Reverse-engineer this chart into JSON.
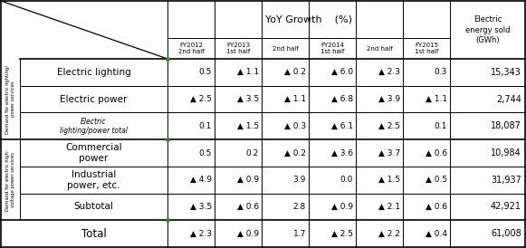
{
  "title_yoy": "YoY Growth    (%)",
  "title_electric": "Electric\nenergy sold\n(GWh)",
  "col_headers": [
    "FY2012\n2nd half",
    "FY2013\n1st half",
    "2nd half",
    "FY2014\n1st half",
    "2nd half",
    "FY2015\n1st half"
  ],
  "rows": [
    {
      "label": "Electric lighting",
      "label_size": 7.5,
      "italic": false,
      "values": [
        "0.5",
        "▲ 1.1",
        "▲ 0.2",
        "▲ 6.0",
        "▲ 2.3",
        "0.3"
      ],
      "kwh": "15,343",
      "group": 1,
      "subtotal": false,
      "total": false
    },
    {
      "label": "Electric power",
      "label_size": 7.5,
      "italic": false,
      "values": [
        "▲ 2.5",
        "▲ 3.5",
        "▲ 1.1",
        "▲ 6.8",
        "▲ 3.9",
        "▲ 1.1"
      ],
      "kwh": "2,744",
      "group": 1,
      "subtotal": false,
      "total": false
    },
    {
      "label": "Electric\nlighting/power total",
      "label_size": 5.5,
      "italic": true,
      "values": [
        "0.1",
        "▲ 1.5",
        "▲ 0.3",
        "▲ 6.1",
        "▲ 2.5",
        "0.1"
      ],
      "kwh": "18,087",
      "group": 1,
      "subtotal": true,
      "total": false
    },
    {
      "label": "Commercial\npower",
      "label_size": 7.5,
      "italic": false,
      "values": [
        "0.5",
        "0.2",
        "▲ 0.2",
        "▲ 3.6",
        "▲ 3.7",
        "▲ 0.6"
      ],
      "kwh": "10,984",
      "group": 2,
      "subtotal": false,
      "total": false
    },
    {
      "label": "Industrial\npower, etc.",
      "label_size": 7.5,
      "italic": false,
      "values": [
        "▲ 4.9",
        "▲ 0.9",
        "3.9",
        "0.0",
        "▲ 1.5",
        "▲ 0.5"
      ],
      "kwh": "31,937",
      "group": 2,
      "subtotal": false,
      "total": false
    },
    {
      "label": "Subtotal",
      "label_size": 7.5,
      "italic": false,
      "values": [
        "▲ 3.5",
        "▲ 0.6",
        "2.8",
        "▲ 0.9",
        "▲ 2.1",
        "▲ 0.6"
      ],
      "kwh": "42,921",
      "group": 2,
      "subtotal": true,
      "total": false
    },
    {
      "label": "Total",
      "label_size": 8.5,
      "italic": false,
      "values": [
        "▲ 2.3",
        "▲ 0.9",
        "1.7",
        "▲ 2.5",
        "▲ 2.2",
        "▲ 0.4"
      ],
      "kwh": "61,008",
      "group": 0,
      "subtotal": false,
      "total": true
    }
  ],
  "bg_color": "#ffffff",
  "line_color": "#000000",
  "text_color": "#000000",
  "green_dot_color": "#228B22",
  "group1_label": "Demand for electric lighting/\npower services",
  "group2_label": "Demand for electric high-\nvoltage power services"
}
